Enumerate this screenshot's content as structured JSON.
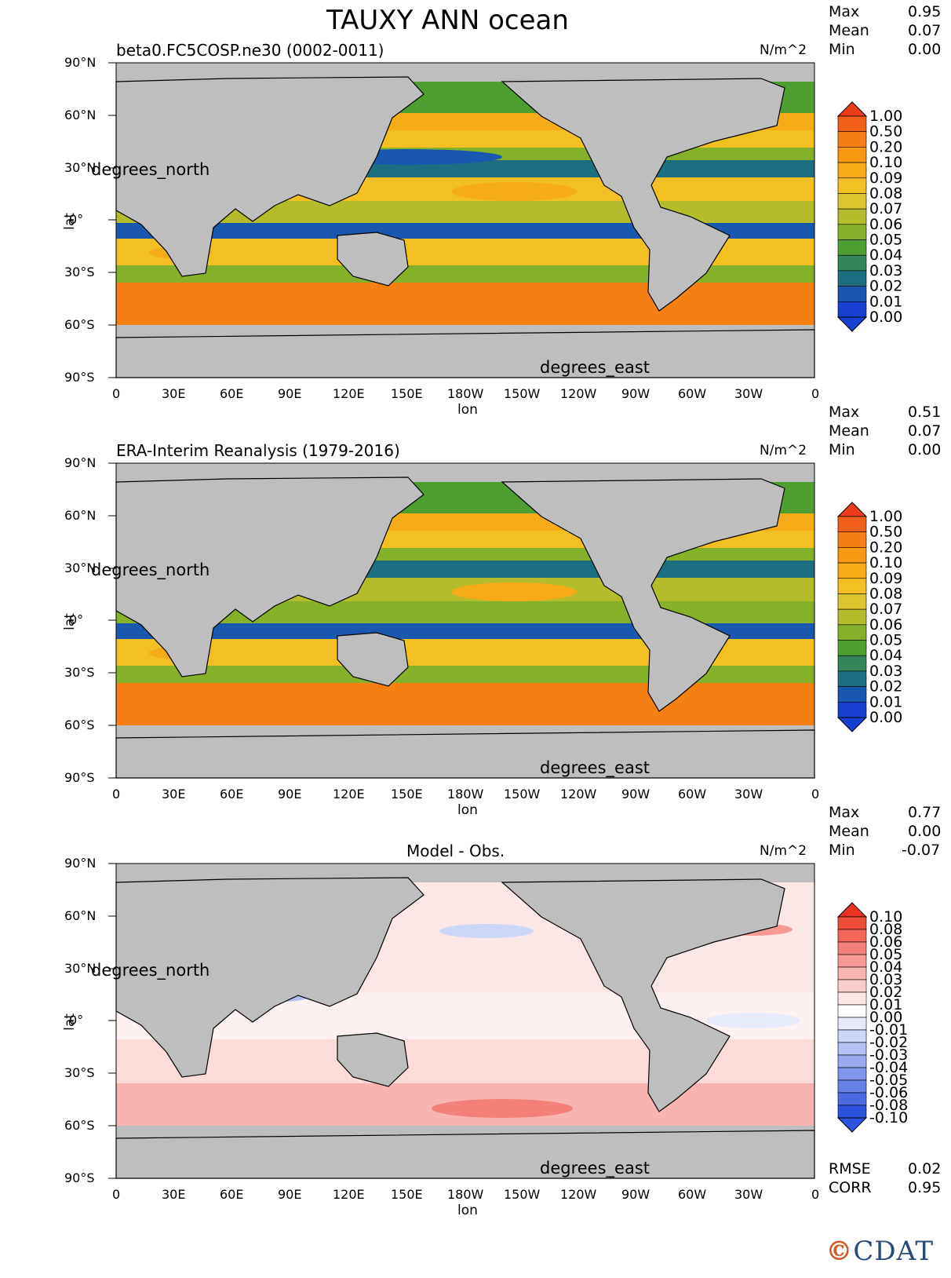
{
  "title": "TAUXY ANN ocean",
  "units": "N/m^2",
  "stat_labels": {
    "max": "Max",
    "mean": "Mean",
    "min": "Min",
    "rmse": "RMSE",
    "corr": "CORR"
  },
  "lon_ticks": [
    "0",
    "30E",
    "60E",
    "90E",
    "120E",
    "150E",
    "180W",
    "150W",
    "120W",
    "90W",
    "60W",
    "30W",
    "0"
  ],
  "lat_ticks": [
    "90°N",
    "60°N",
    "30°N",
    "0°",
    "30°S",
    "60°S",
    "90°S"
  ],
  "xlabel": "lon",
  "ylabel": "lat",
  "x_overlay": "degrees_east",
  "y_overlay": "degrees_north",
  "panels": [
    {
      "title": "beta0.FC5COSP.ne30 (0002-0011)",
      "max": "0.95",
      "mean": "0.07",
      "min": "0.00"
    },
    {
      "title": "ERA-Interim Reanalysis (1979-2016)",
      "max": "0.51",
      "mean": "0.07",
      "min": "0.00"
    },
    {
      "title": "Model - Obs.",
      "max": "0.77",
      "mean": "0.00",
      "min": "-0.07"
    }
  ],
  "rmse": "0.02",
  "corr": "0.95",
  "colorbar_levels": [
    "1.00",
    "0.50",
    "0.20",
    "0.10",
    "0.09",
    "0.08",
    "0.07",
    "0.06",
    "0.05",
    "0.04",
    "0.03",
    "0.02",
    "0.01",
    "0.00"
  ],
  "colorbar_colors": [
    "#ec3c1c",
    "#f06018",
    "#f47f12",
    "#f79812",
    "#f6ab18",
    "#f2c022",
    "#dcc530",
    "#b4bc2c",
    "#84b02a",
    "#4f9e32",
    "#36855a",
    "#1e6e82",
    "#1a58b0",
    "#1840d0"
  ],
  "diff_levels": [
    "0.10",
    "0.08",
    "0.06",
    "0.05",
    "0.04",
    "0.03",
    "0.02",
    "0.01",
    "0.00",
    "-0.01",
    "-0.02",
    "-0.03",
    "-0.04",
    "-0.05",
    "-0.06",
    "-0.08",
    "-0.10"
  ],
  "diff_colors": [
    "#e83222",
    "#ef4d3a",
    "#f2665a",
    "#f4807a",
    "#f69a96",
    "#f8b4b0",
    "#fbcdca",
    "#fde6e4",
    "#ffffff",
    "#e6ebfb",
    "#ccd6f7",
    "#b3c1f3",
    "#99abef",
    "#7f95eb",
    "#6680e6",
    "#4c6be2",
    "#2d52de"
  ],
  "logo": "CDAT",
  "chart_data": [
    {
      "type": "heatmap",
      "title": "beta0.FC5COSP.ne30 (0002-0011)",
      "xlabel": "lon",
      "ylabel": "lat",
      "xlim": [
        0,
        360
      ],
      "ylim": [
        -90,
        90
      ],
      "colorbar_levels": [
        1.0,
        0.5,
        0.2,
        0.1,
        0.09,
        0.08,
        0.07,
        0.06,
        0.05,
        0.04,
        0.03,
        0.02,
        0.01,
        0.0
      ],
      "max": 0.95,
      "mean": 0.07,
      "min": 0.0
    },
    {
      "type": "heatmap",
      "title": "ERA-Interim Reanalysis (1979-2016)",
      "xlabel": "lon",
      "ylabel": "lat",
      "xlim": [
        0,
        360
      ],
      "ylim": [
        -90,
        90
      ],
      "colorbar_levels": [
        1.0,
        0.5,
        0.2,
        0.1,
        0.09,
        0.08,
        0.07,
        0.06,
        0.05,
        0.04,
        0.03,
        0.02,
        0.01,
        0.0
      ],
      "max": 0.51,
      "mean": 0.07,
      "min": 0.0
    },
    {
      "type": "heatmap",
      "title": "Model - Obs.",
      "xlabel": "lon",
      "ylabel": "lat",
      "xlim": [
        0,
        360
      ],
      "ylim": [
        -90,
        90
      ],
      "colorbar_levels": [
        0.1,
        0.08,
        0.06,
        0.05,
        0.04,
        0.03,
        0.02,
        0.01,
        0.0,
        -0.01,
        -0.02,
        -0.03,
        -0.04,
        -0.05,
        -0.06,
        -0.08,
        -0.1
      ],
      "max": 0.77,
      "mean": 0.0,
      "min": -0.07,
      "rmse": 0.02,
      "corr": 0.95
    }
  ]
}
